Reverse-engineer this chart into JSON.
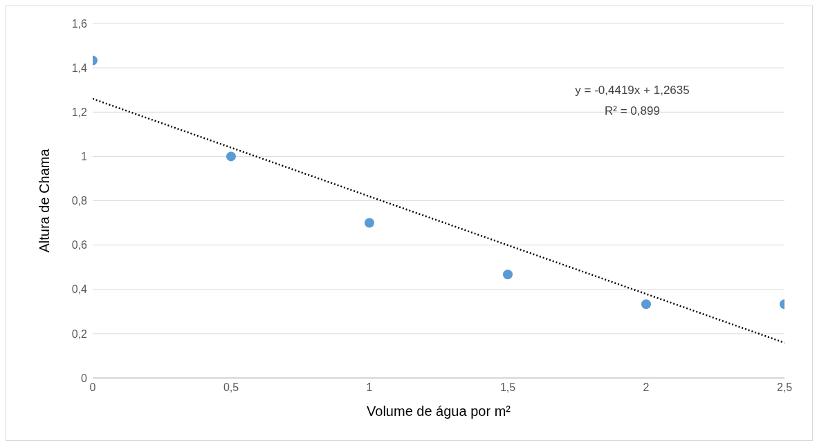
{
  "chart_data": {
    "type": "scatter",
    "xlabel": "Volume de água por m²",
    "ylabel": "Altura de Chama",
    "x": [
      0,
      0.5,
      1,
      1.5,
      2,
      2.5
    ],
    "series": [
      {
        "color": "#5b9bd5",
        "marker": "circle",
        "values": [
          1.433,
          1.0,
          0.7,
          0.467,
          0.333,
          0.333
        ]
      },
      {
        "type": "line",
        "color": "#000000",
        "line_style": "dotted",
        "marker": "none",
        "x": [
          0,
          2.5
        ],
        "values": [
          1.26,
          0.159
        ]
      }
    ],
    "xlim": [
      0,
      2.5
    ],
    "xticks": [
      0,
      {
        "value": 0.5,
        "label": "0,5"
      },
      1,
      {
        "value": 1.5,
        "label": "1,5"
      },
      2,
      {
        "value": 2.5,
        "label": "2,5"
      }
    ],
    "ylim": [
      0,
      1.6
    ],
    "yticks": [
      0,
      {
        "value": 0.2,
        "label": "0,2"
      },
      {
        "value": 0.4,
        "label": "0,4"
      },
      {
        "value": 0.6,
        "label": "0,6"
      },
      {
        "value": 0.8,
        "label": "0,8"
      },
      1,
      {
        "value": 1.2,
        "label": "1,2"
      },
      {
        "value": 1.4,
        "label": "1,4"
      },
      {
        "value": 1.6,
        "label": "1,6"
      }
    ],
    "grid": "y",
    "annotations": [
      "y = -0,4419x + 1,2635",
      "R² = 0,899"
    ]
  }
}
